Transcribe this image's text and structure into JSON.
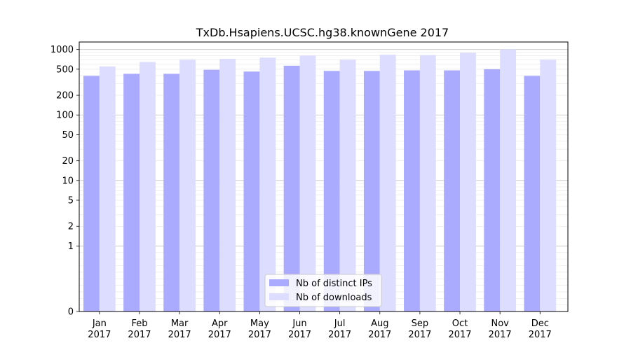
{
  "chart_data": {
    "type": "bar",
    "title": "TxDb.Hsapiens.UCSC.hg38.knownGene 2017",
    "xlabel": "",
    "ylabel": "",
    "yscale": "symlog",
    "ylim": [
      0,
      1300
    ],
    "yticks": [
      0,
      1,
      2,
      5,
      10,
      20,
      50,
      100,
      200,
      500,
      1000
    ],
    "grid": true,
    "legend_position": "bottom-center",
    "categories": [
      "Jan\n2017",
      "Feb\n2017",
      "Mar\n2017",
      "Apr\n2017",
      "May\n2017",
      "Jun\n2017",
      "Jul\n2017",
      "Aug\n2017",
      "Sep\n2017",
      "Oct\n2017",
      "Nov\n2017",
      "Dec\n2017"
    ],
    "series": [
      {
        "name": "Nb of distinct IPs",
        "color": "#aaaaff",
        "values": [
          395,
          425,
          425,
          490,
          460,
          565,
          470,
          470,
          480,
          480,
          500,
          395
        ]
      },
      {
        "name": "Nb of downloads",
        "color": "#ddddff",
        "values": [
          550,
          645,
          700,
          720,
          750,
          810,
          700,
          830,
          820,
          890,
          1000,
          700
        ]
      }
    ]
  }
}
